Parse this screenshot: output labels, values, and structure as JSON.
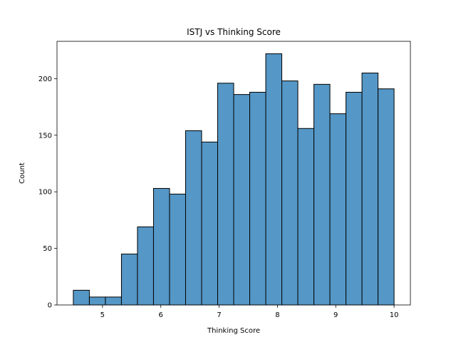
{
  "chart_data": {
    "type": "bar",
    "title": "ISTJ vs Thinking Score",
    "xlabel": "Thinking Score",
    "ylabel": "Count",
    "x_range": [
      4.22,
      10.28
    ],
    "y_range": [
      0,
      233
    ],
    "bin_edges": [
      4.5,
      4.775,
      5.05,
      5.325,
      5.6,
      5.875,
      6.15,
      6.425,
      6.7,
      6.975,
      7.25,
      7.525,
      7.8,
      8.075,
      8.35,
      8.625,
      8.9,
      9.175,
      9.45,
      9.725,
      10.0
    ],
    "values": [
      13,
      7,
      7,
      45,
      69,
      103,
      98,
      154,
      144,
      196,
      186,
      188,
      222,
      198,
      156,
      195,
      169,
      188,
      205,
      191
    ],
    "x_ticks": [
      5,
      6,
      7,
      8,
      9,
      10
    ],
    "x_tick_labels": [
      "5",
      "6",
      "7",
      "8",
      "9",
      "10"
    ],
    "y_ticks": [
      0,
      50,
      100,
      150,
      200
    ],
    "y_tick_labels": [
      "0",
      "50",
      "100",
      "150",
      "200"
    ],
    "bar_color": "#5597c6",
    "edge_color": "#000000",
    "grid": false
  }
}
